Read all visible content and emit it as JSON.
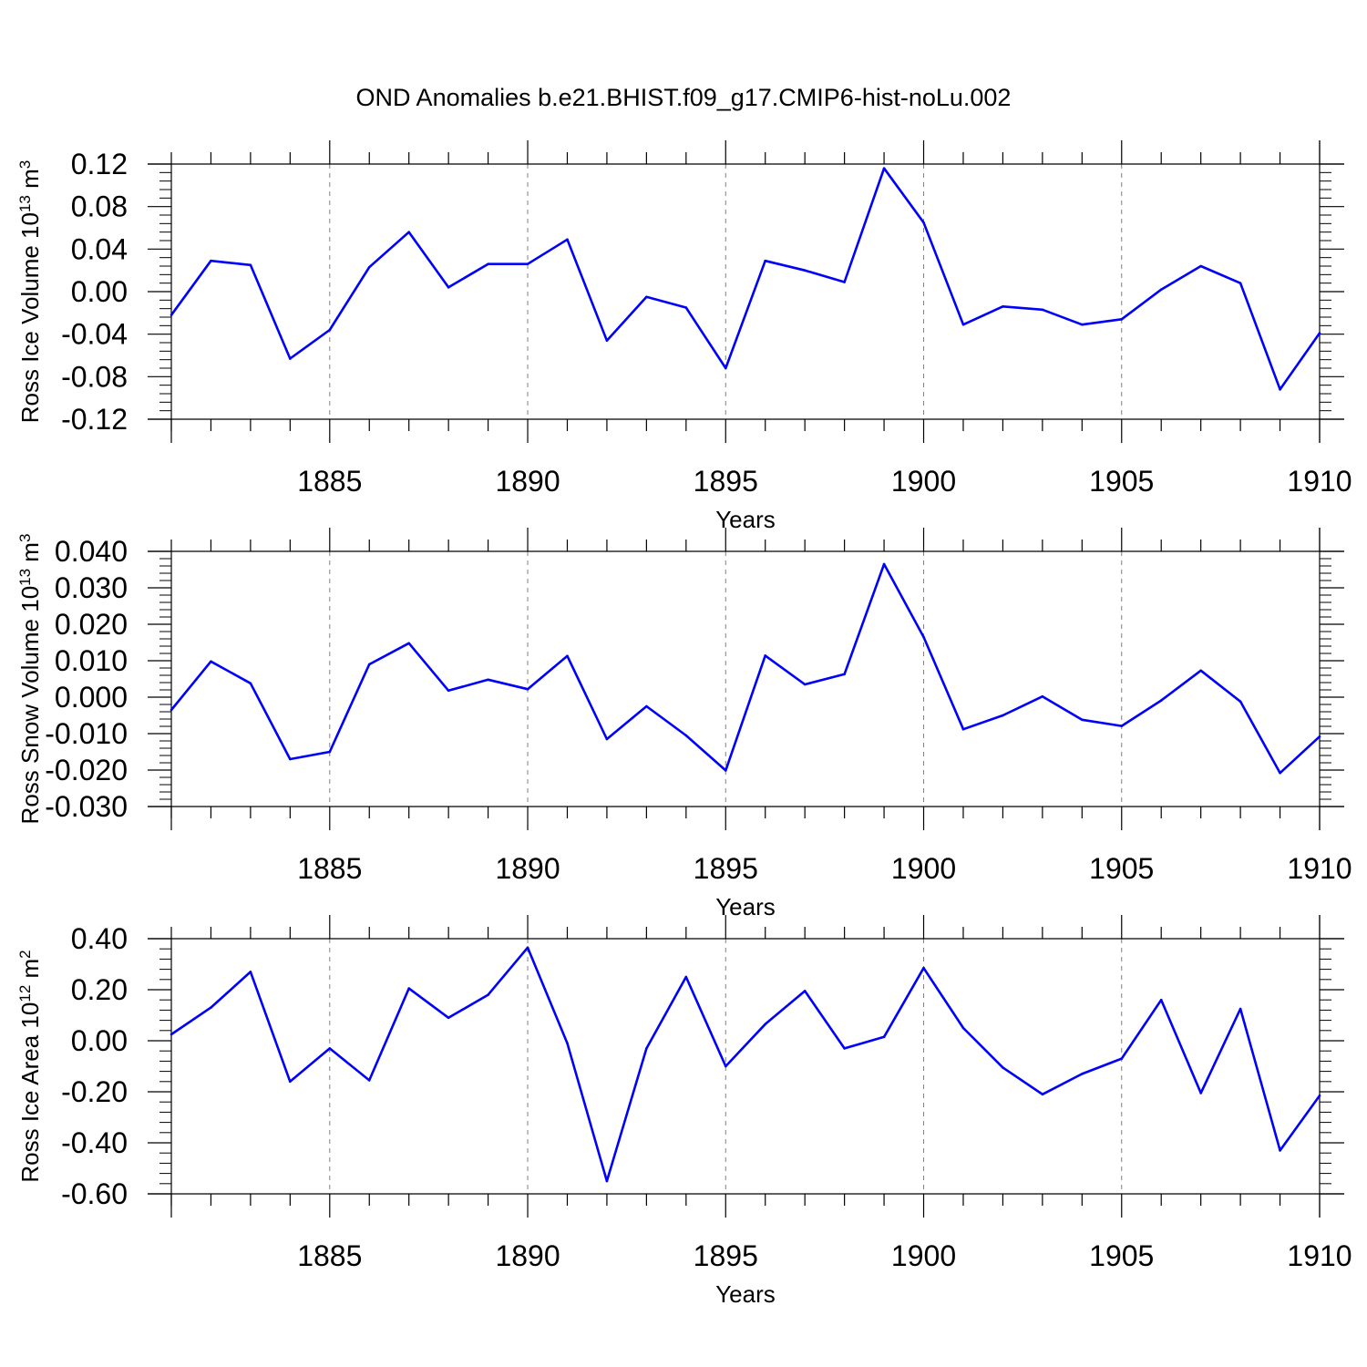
{
  "title": "OND Anomalies b.e21.BHIST.f09_g17.CMIP6-hist-noLu.002",
  "colors": {
    "line": "#0000ff",
    "axis": "#000000",
    "grid": "#808080"
  },
  "chart_data": [
    {
      "type": "line",
      "ylabel_main": "Ross Ice Volume 10",
      "ylabel_exp": "13",
      "ylabel_unit": " m",
      "ylabel_unit_exp": "3",
      "xlabel": "Years",
      "xlim": [
        1881,
        1910
      ],
      "ylim": [
        -0.12,
        0.12
      ],
      "yticks": [
        -0.12,
        -0.08,
        -0.04,
        0.0,
        0.04,
        0.08,
        0.12
      ],
      "ytick_labels": [
        "-0.12",
        "-0.08",
        "-0.04",
        "0.00",
        "0.04",
        "0.08",
        "0.12"
      ],
      "xticks": [
        1885,
        1890,
        1895,
        1900,
        1905,
        1910
      ],
      "xtick_labels": [
        "1885",
        "1890",
        "1895",
        "1900",
        "1905",
        "1910"
      ],
      "grid": "vertical-dashed-at-major-x",
      "x": [
        1881,
        1882,
        1883,
        1884,
        1885,
        1886,
        1887,
        1888,
        1889,
        1890,
        1891,
        1892,
        1893,
        1894,
        1895,
        1896,
        1897,
        1898,
        1899,
        1900,
        1901,
        1902,
        1903,
        1904,
        1905,
        1906,
        1907,
        1908,
        1909,
        1910
      ],
      "series": [
        {
          "values": [
            -0.022,
            0.029,
            0.025,
            -0.063,
            -0.036,
            0.023,
            0.056,
            0.004,
            0.026,
            0.026,
            0.049,
            -0.046,
            -0.005,
            -0.015,
            -0.072,
            0.029,
            0.02,
            0.009,
            0.116,
            0.065,
            -0.031,
            -0.014,
            -0.017,
            -0.031,
            -0.026,
            0.002,
            0.024,
            0.008,
            -0.092,
            -0.039
          ]
        }
      ]
    },
    {
      "type": "line",
      "ylabel_main": "Ross Snow Volume 10",
      "ylabel_exp": "13",
      "ylabel_unit": " m",
      "ylabel_unit_exp": "3",
      "xlabel": "Years",
      "xlim": [
        1881,
        1910
      ],
      "ylim": [
        -0.03,
        0.04
      ],
      "yticks": [
        -0.03,
        -0.02,
        -0.01,
        0.0,
        0.01,
        0.02,
        0.03,
        0.04
      ],
      "ytick_labels": [
        "-0.030",
        "-0.020",
        "-0.010",
        "0.000",
        "0.010",
        "0.020",
        "0.030",
        "0.040"
      ],
      "xticks": [
        1885,
        1890,
        1895,
        1900,
        1905,
        1910
      ],
      "xtick_labels": [
        "1885",
        "1890",
        "1895",
        "1900",
        "1905",
        "1910"
      ],
      "grid": "vertical-dashed-at-major-x",
      "x": [
        1881,
        1882,
        1883,
        1884,
        1885,
        1886,
        1887,
        1888,
        1889,
        1890,
        1891,
        1892,
        1893,
        1894,
        1895,
        1896,
        1897,
        1898,
        1899,
        1900,
        1901,
        1902,
        1903,
        1904,
        1905,
        1906,
        1907,
        1908,
        1909,
        1910
      ],
      "series": [
        {
          "values": [
            -0.0035,
            0.0098,
            0.0038,
            -0.017,
            -0.015,
            0.009,
            0.0148,
            0.0018,
            0.0048,
            0.0022,
            0.0113,
            -0.0115,
            -0.0025,
            -0.0105,
            -0.0201,
            0.0114,
            0.0035,
            0.0063,
            0.0365,
            0.0165,
            -0.0088,
            -0.005,
            0.0002,
            -0.0062,
            -0.0079,
            -0.0009,
            0.0073,
            -0.0012,
            -0.0208,
            -0.0108
          ]
        }
      ]
    },
    {
      "type": "line",
      "ylabel_main": "Ross Ice Area 10",
      "ylabel_exp": "12",
      "ylabel_unit": " m",
      "ylabel_unit_exp": "2",
      "xlabel": "Years",
      "xlim": [
        1881,
        1910
      ],
      "ylim": [
        -0.6,
        0.4
      ],
      "yticks": [
        -0.6,
        -0.4,
        -0.2,
        0.0,
        0.2,
        0.4
      ],
      "ytick_labels": [
        "-0.60",
        "-0.40",
        "-0.20",
        "0.00",
        "0.20",
        "0.40"
      ],
      "xticks": [
        1885,
        1890,
        1895,
        1900,
        1905,
        1910
      ],
      "xtick_labels": [
        "1885",
        "1890",
        "1895",
        "1900",
        "1905",
        "1910"
      ],
      "grid": "vertical-dashed-at-major-x",
      "x": [
        1881,
        1882,
        1883,
        1884,
        1885,
        1886,
        1887,
        1888,
        1889,
        1890,
        1891,
        1892,
        1893,
        1894,
        1895,
        1896,
        1897,
        1898,
        1899,
        1900,
        1901,
        1902,
        1903,
        1904,
        1905,
        1906,
        1907,
        1908,
        1909,
        1910
      ],
      "series": [
        {
          "values": [
            0.025,
            0.13,
            0.27,
            -0.16,
            -0.03,
            -0.155,
            0.205,
            0.09,
            0.18,
            0.365,
            -0.01,
            -0.55,
            -0.03,
            0.25,
            -0.1,
            0.065,
            0.195,
            -0.03,
            0.015,
            0.285,
            0.05,
            -0.105,
            -0.21,
            -0.13,
            -0.07,
            0.16,
            -0.205,
            0.125,
            -0.43,
            -0.215
          ]
        }
      ]
    }
  ]
}
